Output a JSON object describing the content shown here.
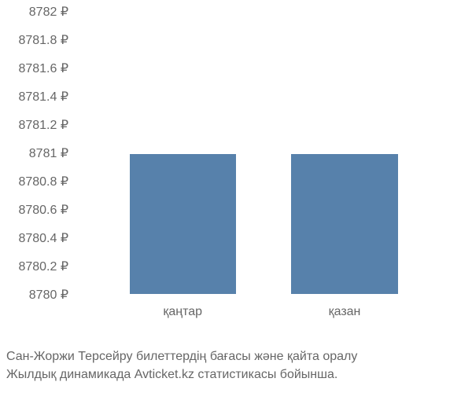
{
  "chart": {
    "type": "bar",
    "ylim": [
      8780,
      8782
    ],
    "ytick_step": 0.2,
    "yticks": [
      {
        "value": 8782,
        "label": "8782 ₽",
        "pos": 0
      },
      {
        "value": 8781.8,
        "label": "8781.8 ₽",
        "pos": 10
      },
      {
        "value": 8781.6,
        "label": "8781.6 ₽",
        "pos": 20
      },
      {
        "value": 8781.4,
        "label": "8781.4 ₽",
        "pos": 30
      },
      {
        "value": 8781.2,
        "label": "8781.2 ₽",
        "pos": 40
      },
      {
        "value": 8781,
        "label": "8781 ₽",
        "pos": 50
      },
      {
        "value": 8780.8,
        "label": "8780.8 ₽",
        "pos": 60
      },
      {
        "value": 8780.6,
        "label": "8780.6 ₽",
        "pos": 70
      },
      {
        "value": 8780.4,
        "label": "8780.4 ₽",
        "pos": 80
      },
      {
        "value": 8780.2,
        "label": "8780.2 ₽",
        "pos": 90
      },
      {
        "value": 8780,
        "label": "8780 ₽",
        "pos": 100
      }
    ],
    "categories": [
      "қаңтар",
      "қазан"
    ],
    "values": [
      8781,
      8781
    ],
    "bar_color": "#5781ab",
    "bar_width_pct": 28,
    "bar_positions": [
      28,
      70
    ],
    "background_color": "#ffffff",
    "text_color": "#666666",
    "label_fontsize": 16
  },
  "caption": {
    "line1": "Сан-Жоржи Терсейру билеттердің бағасы және қайта оралу",
    "line2": "Жылдық динамикада Avticket.kz статистикасы бойынша."
  }
}
